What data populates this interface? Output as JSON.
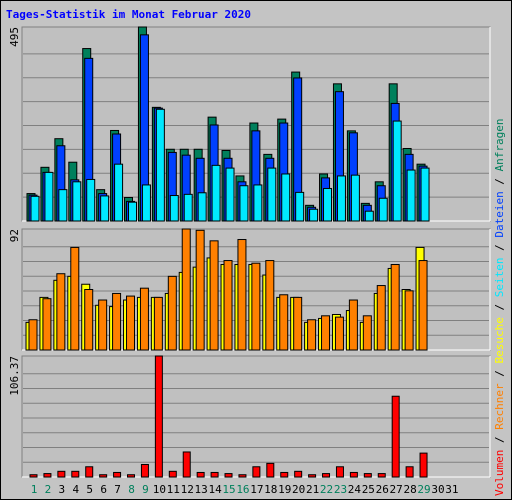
{
  "chart_data": [
    {
      "type": "bar",
      "title": "Tages-Statistik im Monat Februar 2020",
      "ylim": [
        0,
        495
      ],
      "yticks": [
        495
      ],
      "grid_divisions": 8,
      "series": [
        {
          "name": "Anfragen",
          "color": "#00805c",
          "values": [
            70,
            137,
            210,
            150,
            440,
            80,
            231,
            60,
            495,
            290,
            183,
            183,
            183,
            265,
            180,
            115,
            250,
            170,
            260,
            380,
            40,
            120,
            350,
            230,
            45,
            100,
            350,
            185,
            145,
            null,
            null
          ]
        },
        {
          "name": "Dateien",
          "color": "#0040ff",
          "values": [
            66,
            124,
            192,
            105,
            415,
            70,
            222,
            50,
            475,
            288,
            175,
            168,
            160,
            245,
            160,
            100,
            230,
            160,
            250,
            365,
            35,
            110,
            330,
            225,
            40,
            90,
            300,
            170,
            140,
            null,
            null
          ]
        },
        {
          "name": "Seiten",
          "color": "#00e8ff",
          "values": [
            63,
            124,
            80,
            100,
            106,
            64,
            145,
            48,
            92,
            285,
            65,
            68,
            72,
            142,
            135,
            90,
            92,
            135,
            120,
            73,
            30,
            83,
            115,
            117,
            25,
            58,
            255,
            130,
            135,
            null,
            null
          ]
        }
      ]
    },
    {
      "type": "bar",
      "ylim": [
        0,
        92
      ],
      "yticks": [
        92
      ],
      "grid_divisions": 8,
      "series": [
        {
          "name": "Besuche",
          "color": "#ffff00",
          "values": [
            21,
            40,
            53,
            56,
            50,
            34,
            33,
            38,
            40,
            40,
            43,
            59,
            63,
            70,
            65,
            65,
            65,
            57,
            40,
            40,
            21,
            24,
            27,
            30,
            21,
            43,
            62,
            46,
            78,
            null,
            null
          ]
        },
        {
          "name": "Rechner",
          "color": "#ff8000",
          "values": [
            23,
            39,
            58,
            78,
            46,
            38,
            43,
            41,
            47,
            40,
            56,
            92,
            91,
            83,
            68,
            84,
            66,
            68,
            42,
            40,
            23,
            26,
            25,
            38,
            26,
            49,
            65,
            45,
            68,
            null,
            null
          ]
        }
      ]
    },
    {
      "type": "bar",
      "ylim": [
        0,
        106.37
      ],
      "yticks": [
        106.37
      ],
      "grid_divisions": 8,
      "categories": [
        "1",
        "2",
        "3",
        "4",
        "5",
        "6",
        "7",
        "8",
        "9",
        "10",
        "11",
        "12",
        "13",
        "14",
        "15",
        "16",
        "17",
        "18",
        "19",
        "20",
        "21",
        "22",
        "23",
        "24",
        "25",
        "26",
        "27",
        "28",
        "29",
        "30",
        "31"
      ],
      "x_label_colors": [
        "#00805c",
        "#00805c",
        "#000000",
        "#000000",
        "#000000",
        "#000000",
        "#000000",
        "#00805c",
        "#00805c",
        "#000000",
        "#000000",
        "#000000",
        "#000000",
        "#000000",
        "#00805c",
        "#00805c",
        "#000000",
        "#000000",
        "#000000",
        "#000000",
        "#000000",
        "#00805c",
        "#00805c",
        "#000000",
        "#000000",
        "#000000",
        "#000000",
        "#000000",
        "#00805c",
        "#000000",
        "#000000"
      ],
      "series": [
        {
          "name": "Volumen",
          "color": "#ff0000",
          "values": [
            2,
            3,
            5,
            5,
            9,
            2,
            4,
            2,
            11,
            106.37,
            5,
            22,
            4,
            4,
            3,
            2,
            9,
            12,
            4,
            5,
            2,
            3,
            9,
            4,
            3,
            3,
            71,
            9,
            21,
            null,
            null
          ]
        }
      ]
    }
  ],
  "legend_separator": " / "
}
